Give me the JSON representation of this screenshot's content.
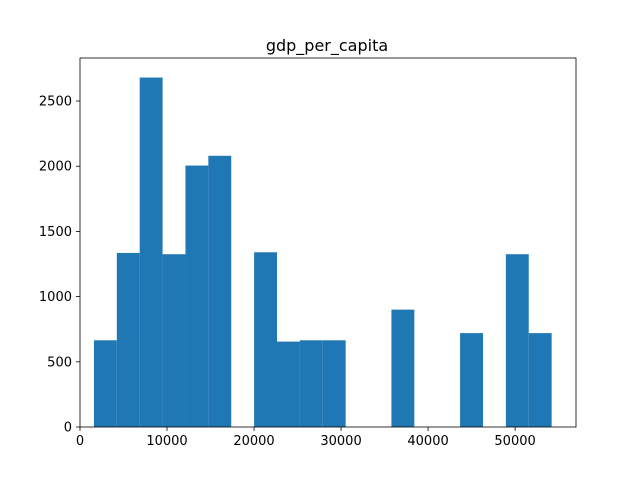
{
  "chart_data": {
    "type": "bar",
    "title": "gdp_per_capita",
    "xlabel": "",
    "ylabel": "",
    "xlim": [
      0,
      57000
    ],
    "ylim": [
      0,
      2830
    ],
    "xticks": [
      0,
      10000,
      20000,
      30000,
      40000,
      50000
    ],
    "xtick_labels": [
      "0",
      "10000",
      "20000",
      "30000",
      "40000",
      "50000"
    ],
    "yticks": [
      0,
      500,
      1000,
      1500,
      2000,
      2500
    ],
    "ytick_labels": [
      "0",
      "500",
      "1000",
      "1500",
      "2000",
      "2500"
    ],
    "bar_color": "#1f77b4",
    "grid": false,
    "bins": [
      {
        "x0": 1600,
        "x1": 4230,
        "count": 665
      },
      {
        "x0": 4230,
        "x1": 6860,
        "count": 1335
      },
      {
        "x0": 6860,
        "x1": 9490,
        "count": 2680
      },
      {
        "x0": 9490,
        "x1": 12120,
        "count": 1325
      },
      {
        "x0": 12120,
        "x1": 14750,
        "count": 2005
      },
      {
        "x0": 14750,
        "x1": 17380,
        "count": 2080
      },
      {
        "x0": 17380,
        "x1": 20010,
        "count": 0
      },
      {
        "x0": 20010,
        "x1": 22640,
        "count": 1340
      },
      {
        "x0": 22640,
        "x1": 25270,
        "count": 655
      },
      {
        "x0": 25270,
        "x1": 27900,
        "count": 665
      },
      {
        "x0": 27900,
        "x1": 30530,
        "count": 665
      },
      {
        "x0": 30530,
        "x1": 33160,
        "count": 0
      },
      {
        "x0": 33160,
        "x1": 35790,
        "count": 0
      },
      {
        "x0": 35790,
        "x1": 38420,
        "count": 900
      },
      {
        "x0": 38420,
        "x1": 41050,
        "count": 0
      },
      {
        "x0": 41050,
        "x1": 43680,
        "count": 0
      },
      {
        "x0": 43680,
        "x1": 46310,
        "count": 720
      },
      {
        "x0": 46310,
        "x1": 48940,
        "count": 0
      },
      {
        "x0": 48940,
        "x1": 51570,
        "count": 1325
      },
      {
        "x0": 51570,
        "x1": 54200,
        "count": 720
      }
    ]
  }
}
